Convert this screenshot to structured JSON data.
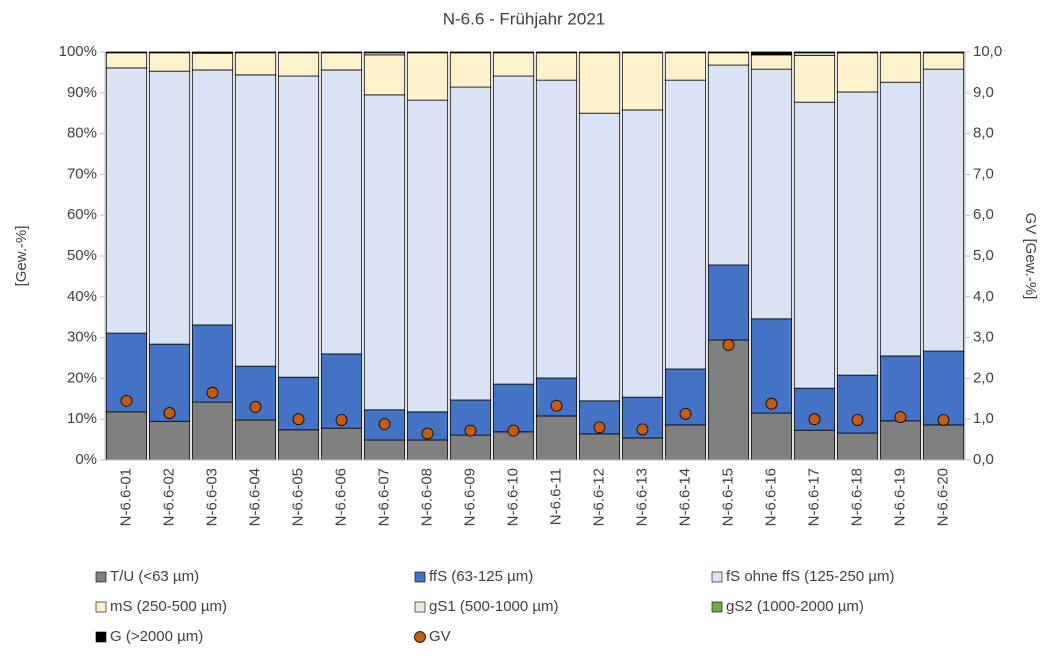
{
  "chart_data": {
    "type": "bar",
    "stacked": true,
    "title": "N-6.6 - Frühjahr 2021",
    "ylabel": "[Gew.-%]",
    "y2label": "GV [Gew.-%]",
    "categories": [
      "N-6.6-01",
      "N-6.6-02",
      "N-6.6-03",
      "N-6.6-04",
      "N-6.6-05",
      "N-6.6-06",
      "N-6.6-07",
      "N-6.6-08",
      "N-6.6-09",
      "N-6.6-10",
      "N-6.6-11",
      "N-6.6-12",
      "N-6.6-13",
      "N-6.6-14",
      "N-6.6-15",
      "N-6.6-16",
      "N-6.6-17",
      "N-6.6-18",
      "N-6.6-19",
      "N-6.6-20"
    ],
    "series": [
      {
        "name": "T/U (<63 µm)",
        "color": "#808080",
        "values": [
          11.8,
          9.5,
          14.2,
          9.8,
          7.4,
          7.8,
          4.9,
          4.9,
          6.1,
          6.9,
          10.8,
          6.4,
          5.4,
          8.6,
          29.4,
          11.5,
          7.3,
          6.6,
          9.6,
          8.6
        ]
      },
      {
        "name": "ffS (63-125 µm)",
        "color": "#4472c4",
        "values": [
          19.3,
          18.9,
          18.9,
          13.2,
          12.9,
          18.2,
          7.4,
          6.9,
          8.6,
          11.7,
          9.3,
          8.1,
          10.0,
          13.7,
          18.4,
          23.1,
          10.3,
          14.2,
          15.9,
          18.1
        ]
      },
      {
        "name": "fS ohne ffS (125-250 µm)",
        "color": "#dae3f3",
        "values": [
          65.0,
          66.9,
          62.5,
          71.4,
          73.8,
          69.6,
          77.2,
          76.4,
          76.7,
          75.5,
          73.0,
          70.5,
          70.4,
          70.8,
          49.0,
          61.2,
          70.1,
          69.4,
          67.1,
          69.1
        ]
      },
      {
        "name": "mS (250-500 µm)",
        "color": "#fff2cc",
        "values": [
          3.7,
          4.5,
          4.1,
          5.4,
          5.7,
          4.2,
          9.8,
          11.6,
          8.4,
          5.7,
          6.7,
          14.8,
          14.0,
          6.7,
          3.0,
          3.5,
          11.5,
          9.6,
          7.2,
          4.0
        ]
      },
      {
        "name": "gS1 (500-1000 µm)",
        "color": "#e2f0d9",
        "values": [
          0.1,
          0.1,
          0.1,
          0.1,
          0.1,
          0.1,
          0.5,
          0.1,
          0.1,
          0.1,
          0.1,
          0.1,
          0.1,
          0.1,
          0.1,
          0.2,
          0.6,
          0.1,
          0.1,
          0.1
        ]
      },
      {
        "name": "gS2 (1000-2000 µm)",
        "color": "#70ad47",
        "values": [
          0,
          0,
          0,
          0,
          0,
          0,
          0,
          0,
          0,
          0,
          0,
          0,
          0,
          0,
          0,
          0,
          0,
          0,
          0,
          0
        ]
      },
      {
        "name": "G (>2000 µm)",
        "color": "#000000",
        "values": [
          0.1,
          0.1,
          0.2,
          0.1,
          0.1,
          0.1,
          0.2,
          0.1,
          0.1,
          0.1,
          0.1,
          0.1,
          0.1,
          0.1,
          0.1,
          0.5,
          0.2,
          0.1,
          0.1,
          0.1
        ]
      },
      {
        "name": "GV",
        "color": "#c55a11",
        "type": "scatter",
        "axis": "y2",
        "values": [
          1.45,
          1.15,
          1.65,
          1.3,
          1.0,
          0.98,
          0.88,
          0.65,
          0.72,
          0.72,
          1.33,
          0.8,
          0.75,
          1.13,
          2.82,
          1.38,
          1.0,
          0.98,
          1.05,
          0.98
        ]
      }
    ],
    "ylim": [
      0,
      100
    ],
    "yticks": [
      {
        "value": 0,
        "label": "0%"
      },
      {
        "value": 10,
        "label": "10%"
      },
      {
        "value": 20,
        "label": "20%"
      },
      {
        "value": 30,
        "label": "30%"
      },
      {
        "value": 40,
        "label": "40%"
      },
      {
        "value": 50,
        "label": "50%"
      },
      {
        "value": 60,
        "label": "60%"
      },
      {
        "value": 70,
        "label": "70%"
      },
      {
        "value": 80,
        "label": "80%"
      },
      {
        "value": 90,
        "label": "90%"
      },
      {
        "value": 100,
        "label": "100%"
      }
    ],
    "y2lim": [
      0,
      10
    ],
    "y2ticks": [
      {
        "value": 0,
        "label": "0,0"
      },
      {
        "value": 1,
        "label": "1,0"
      },
      {
        "value": 2,
        "label": "2,0"
      },
      {
        "value": 3,
        "label": "3,0"
      },
      {
        "value": 4,
        "label": "4,0"
      },
      {
        "value": 5,
        "label": "5,0"
      },
      {
        "value": 6,
        "label": "6,0"
      },
      {
        "value": 7,
        "label": "7,0"
      },
      {
        "value": 8,
        "label": "8,0"
      },
      {
        "value": 9,
        "label": "9,0"
      },
      {
        "value": 10,
        "label": "10,0"
      }
    ],
    "legend": "bottom"
  }
}
